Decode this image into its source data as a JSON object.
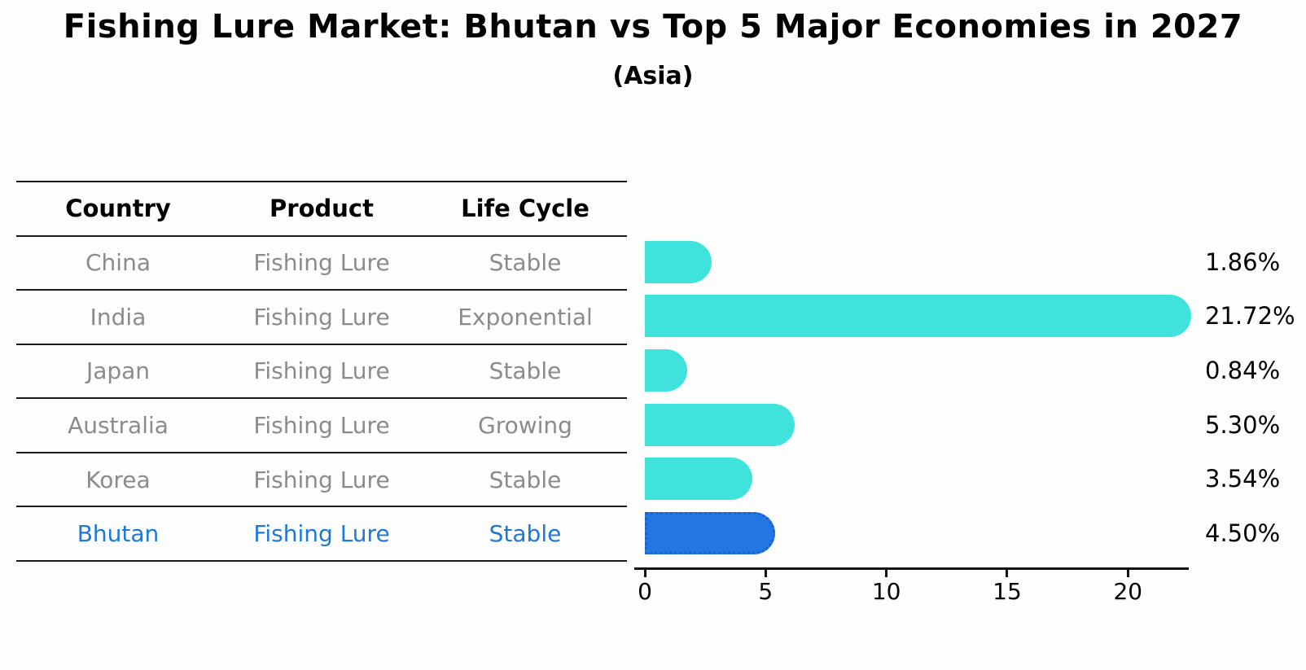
{
  "title": "Fishing Lure Market: Bhutan vs Top 5 Major Economies in 2027",
  "subtitle": "(Asia)",
  "table": {
    "headers": [
      "Country",
      "Product",
      "Life Cycle"
    ],
    "rows": [
      {
        "country": "China",
        "product": "Fishing Lure",
        "life_cycle": "Stable",
        "highlight": false
      },
      {
        "country": "India",
        "product": "Fishing Lure",
        "life_cycle": "Exponential",
        "highlight": false
      },
      {
        "country": "Japan",
        "product": "Fishing Lure",
        "life_cycle": "Stable",
        "highlight": false
      },
      {
        "country": "Australia",
        "product": "Fishing Lure",
        "life_cycle": "Growing",
        "highlight": false
      },
      {
        "country": "Korea",
        "product": "Fishing Lure",
        "life_cycle": "Stable",
        "highlight": false
      },
      {
        "country": "Bhutan",
        "product": "Fishing Lure",
        "life_cycle": "Stable",
        "highlight": true
      }
    ]
  },
  "chart_data": {
    "type": "bar",
    "orientation": "horizontal",
    "title": "Fishing Lure Market: Bhutan vs Top 5 Major Economies in 2027",
    "subtitle": "(Asia)",
    "categories": [
      "China",
      "India",
      "Japan",
      "Australia",
      "Korea",
      "Bhutan"
    ],
    "values": [
      1.86,
      21.72,
      0.84,
      5.3,
      3.54,
      4.5
    ],
    "value_labels": [
      "1.86%",
      "21.72%",
      "0.84%",
      "5.30%",
      "3.54%",
      "4.50%"
    ],
    "xlabel": "",
    "ylabel": "",
    "xlim": [
      0,
      22.5
    ],
    "xticks": [
      0,
      5,
      10,
      15,
      20
    ],
    "xtick_labels": [
      "0",
      "5",
      "10",
      "15",
      "20"
    ],
    "grid": false,
    "legend": false,
    "highlight_category": "Bhutan"
  },
  "colors": {
    "bar_default": "#40e3dc",
    "bar_highlight": "#2377e4",
    "bar_highlight_border": "#1a61cf",
    "row_text": "#8b8b8b",
    "highlight_text": "#1e78d7",
    "axis": "#111111",
    "heading_text": "#000000"
  }
}
